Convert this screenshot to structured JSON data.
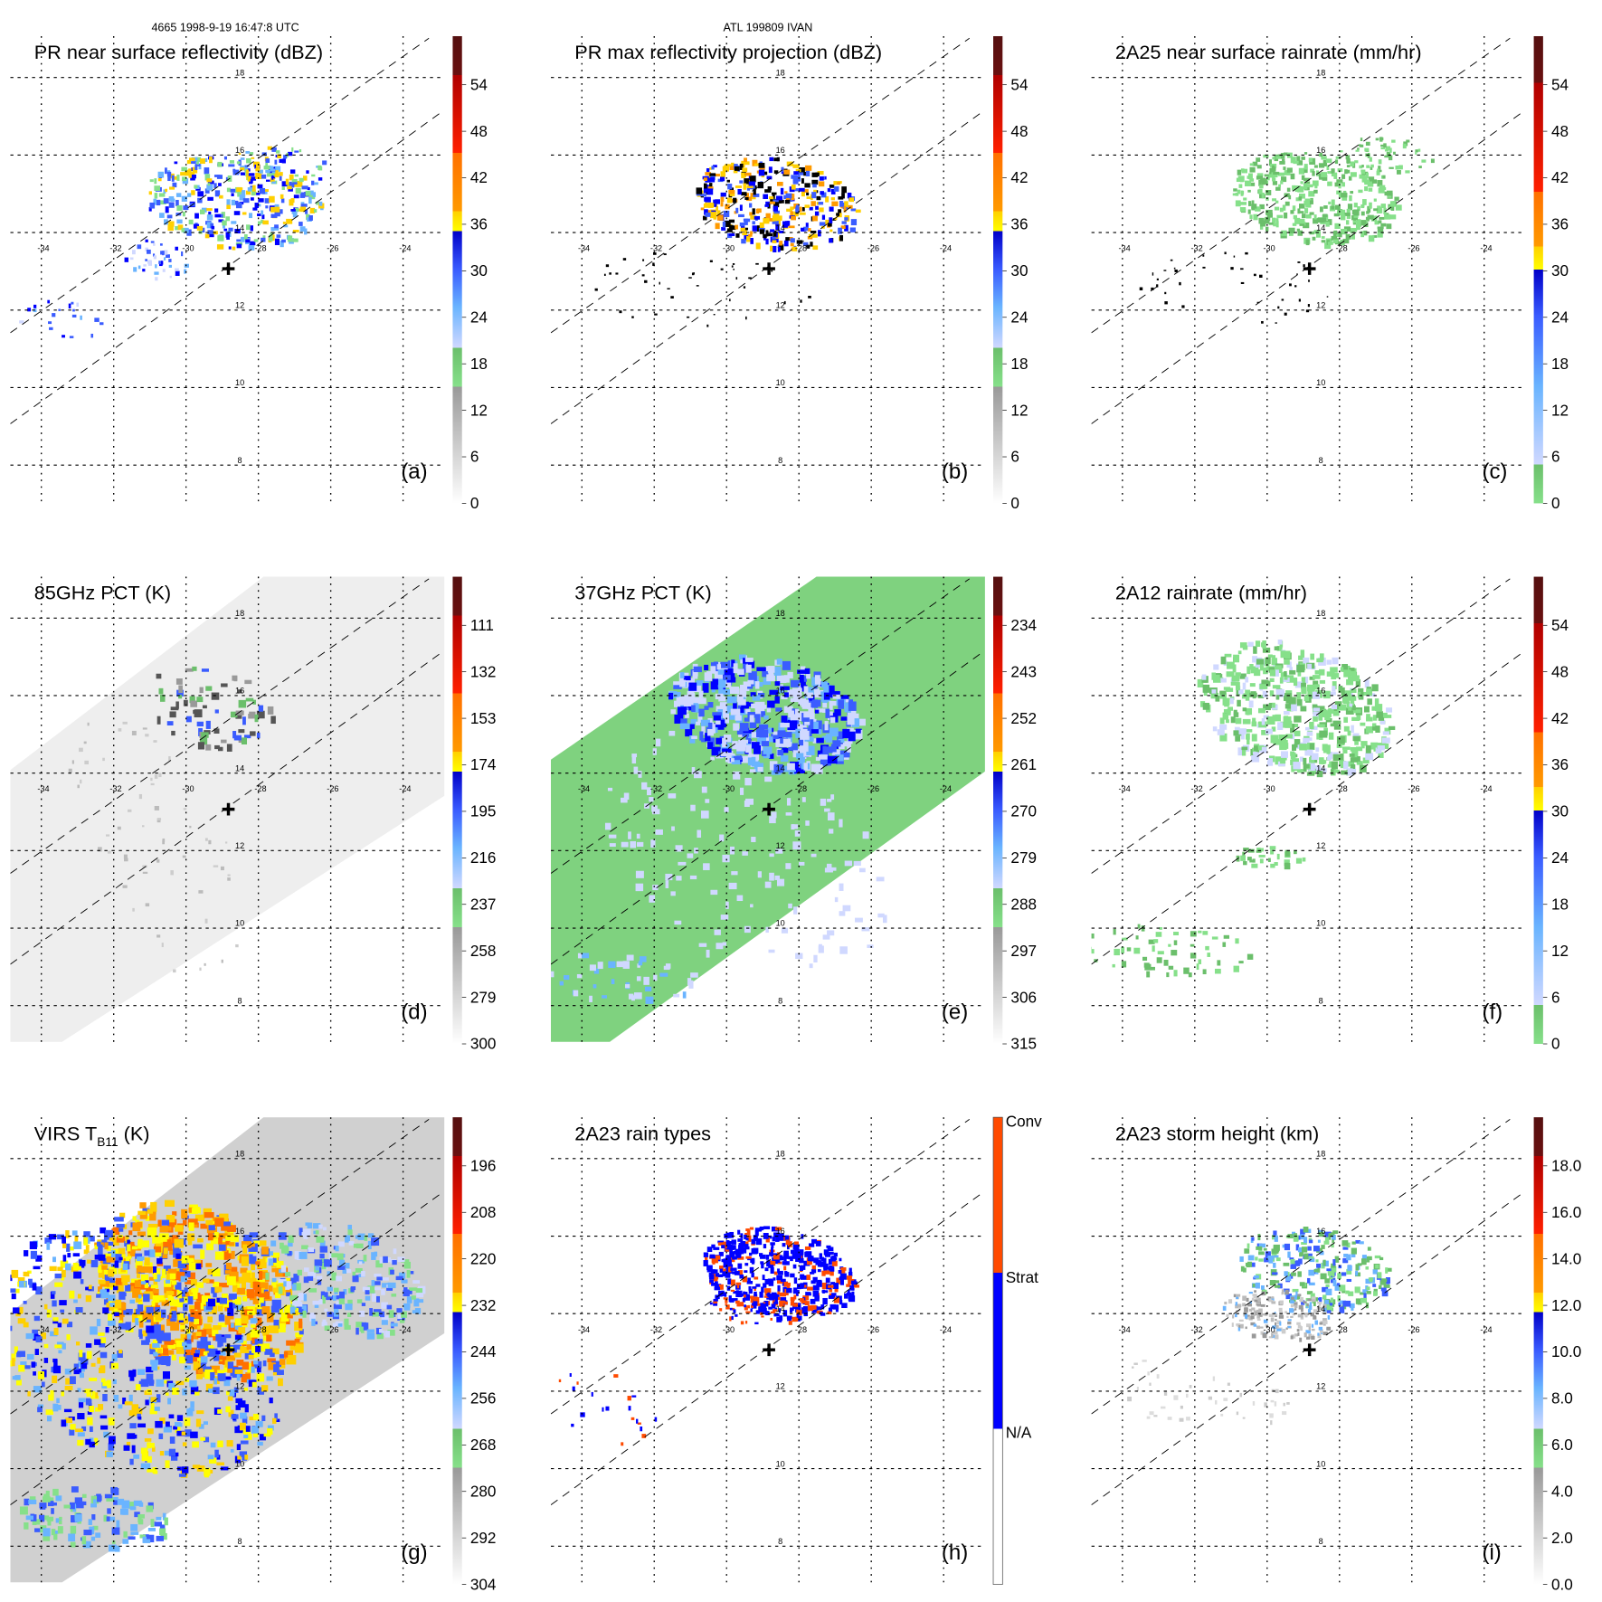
{
  "header": {
    "orbit_time": "4665 1998-9-19 16:47:8 UTC",
    "storm": "ATL 199809 IVAN"
  },
  "grid": {
    "lon_labels": [
      "-34",
      "-32",
      "-30",
      "-28",
      "-26",
      "-24"
    ],
    "lat_labels": [
      "18",
      "16",
      "14",
      "12",
      "10",
      "8"
    ]
  },
  "palettes": {
    "reflectivity": [
      "#ffffff",
      "#cfcfcf",
      "#9a9a9a",
      "#86e08a",
      "#6bbf6b",
      "#ccd6ff",
      "#7fbfff",
      "#4aa8ff",
      "#3a5cff",
      "#0000ff",
      "#0000b0",
      "#ffff00",
      "#ffd000",
      "#ff9a00",
      "#ff7a00",
      "#ff2000",
      "#d00000",
      "#a00000",
      "#5a1010"
    ],
    "rain_type": {
      "conv": "#ff4a00",
      "strat": "#0010ff",
      "na": "#ffffff"
    }
  },
  "panels": [
    {
      "id": "a",
      "title": "PR near surface reflectivity (dBZ)",
      "letter": "(a)",
      "palette": "refl",
      "ticks": [
        "0",
        "6",
        "12",
        "18",
        "24",
        "30",
        "36",
        "42",
        "48",
        "54"
      ]
    },
    {
      "id": "b",
      "title": "PR max reflectivity projection (dBZ)",
      "letter": "(b)",
      "palette": "refl",
      "ticks": [
        "0",
        "6",
        "12",
        "18",
        "24",
        "30",
        "36",
        "42",
        "48",
        "54"
      ]
    },
    {
      "id": "c",
      "title": "2A25 near surface rainrate (mm/hr)",
      "letter": "(c)",
      "palette": "rain",
      "ticks": [
        "0",
        "6",
        "12",
        "18",
        "24",
        "30",
        "36",
        "42",
        "48",
        "54"
      ]
    },
    {
      "id": "d",
      "title": "85GHz PCT (K)",
      "letter": "(d)",
      "palette": "refl",
      "ticks": [
        "300",
        "279",
        "258",
        "237",
        "216",
        "195",
        "174",
        "153",
        "132",
        "111"
      ]
    },
    {
      "id": "e",
      "title": "37GHz PCT (K)",
      "letter": "(e)",
      "palette": "refl",
      "ticks": [
        "315",
        "306",
        "297",
        "288",
        "279",
        "270",
        "261",
        "252",
        "243",
        "234"
      ]
    },
    {
      "id": "f",
      "title": "2A12 rainrate (mm/hr)",
      "letter": "(f)",
      "palette": "rain",
      "ticks": [
        "0",
        "6",
        "12",
        "18",
        "24",
        "30",
        "36",
        "42",
        "48",
        "54"
      ]
    },
    {
      "id": "g",
      "title": "VIRS T",
      "title_sub": "B11",
      "title_suffix": " (K)",
      "letter": "(g)",
      "palette": "refl",
      "ticks": [
        "304",
        "292",
        "280",
        "268",
        "256",
        "244",
        "232",
        "220",
        "208",
        "196"
      ]
    },
    {
      "id": "h",
      "title": "2A23 rain types",
      "letter": "(h)",
      "palette": "type",
      "ticks": [
        "Conv",
        "Strat",
        "N/A"
      ]
    },
    {
      "id": "i",
      "title": "2A23 storm height (km)",
      "letter": "(i)",
      "palette": "refl",
      "ticks": [
        "0.0",
        "2.0",
        "4.0",
        "6.0",
        "8.0",
        "10.0",
        "12.0",
        "14.0",
        "16.0",
        "18.0"
      ]
    }
  ]
}
